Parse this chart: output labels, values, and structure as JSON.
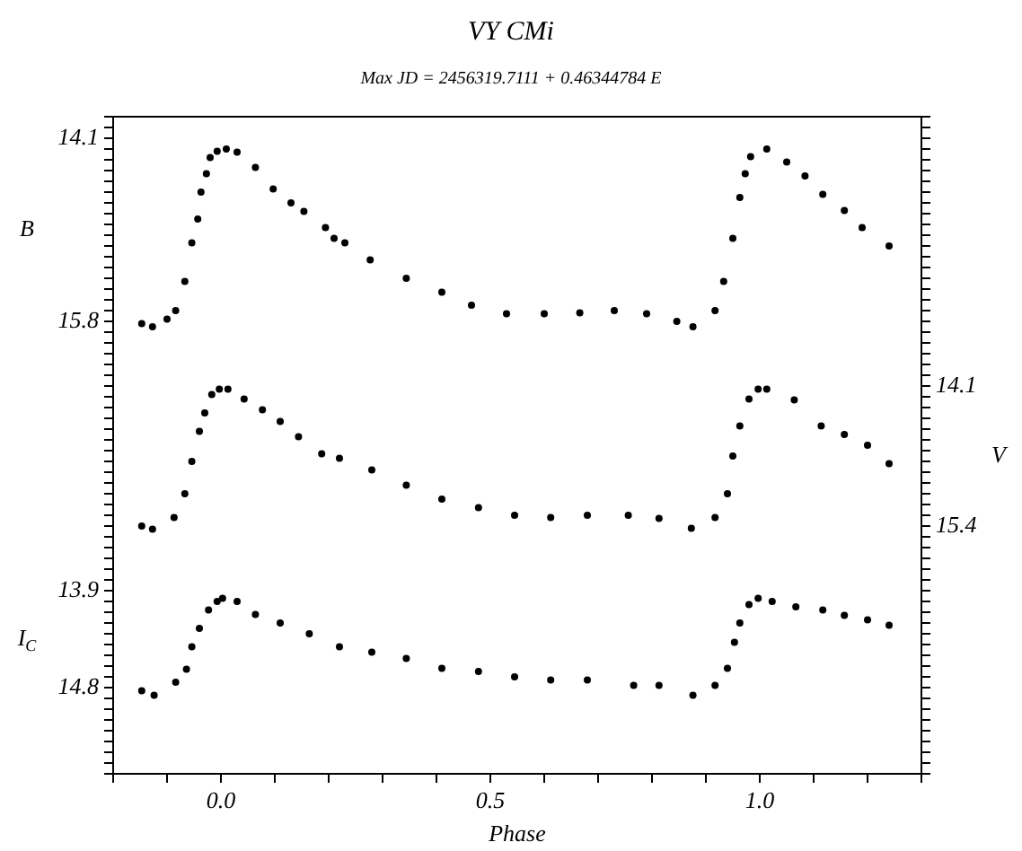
{
  "chart_data": {
    "type": "scatter",
    "title": "VY CMi",
    "subtitle": "Max JD = 2456319.7111 + 0.46344784 E",
    "xlabel": "Phase",
    "ylabel": "B",
    "y2label": "V",
    "y3label": "I$_{C}$",
    "grid": false,
    "legend": false,
    "marker": "circle",
    "xlim": [
      -0.2,
      1.3
    ],
    "xticks": [
      {
        "value": -0.2,
        "label": null
      },
      {
        "value": -0.1,
        "label": null
      },
      {
        "value": 0,
        "label": "0.0"
      },
      {
        "value": 0.1,
        "label": null
      },
      {
        "value": 0.2,
        "label": null
      },
      {
        "value": 0.3,
        "label": null
      },
      {
        "value": 0.4,
        "label": null
      },
      0.5,
      {
        "value": 0.6,
        "label": null
      },
      {
        "value": 0.7,
        "label": null
      },
      {
        "value": 0.8,
        "label": null
      },
      {
        "value": 0.9,
        "label": null
      },
      {
        "value": 1,
        "label": "1.0"
      },
      {
        "value": 1.1,
        "label": null
      },
      {
        "value": 1.2,
        "label": null
      },
      {
        "value": 1.3,
        "label": null
      }
    ],
    "ylim": [
      20.0,
      13.9
    ],
    "yticks": [
      {
        "value": 13.9,
        "label": null
      },
      {
        "value": 14.0,
        "label": null
      },
      14.1,
      {
        "value": 14.2,
        "label": null
      },
      {
        "value": 14.3,
        "label": null
      },
      {
        "value": 14.4,
        "label": null
      },
      {
        "value": 14.5,
        "label": null
      },
      {
        "value": 14.6,
        "label": null
      },
      {
        "value": 14.7,
        "label": null
      },
      {
        "value": 14.8,
        "label": null
      },
      {
        "value": 14.9,
        "label": null
      },
      {
        "value": 15.0,
        "label": null
      },
      {
        "value": 15.1,
        "label": null
      },
      {
        "value": 15.2,
        "label": null
      },
      {
        "value": 15.3,
        "label": null
      },
      {
        "value": 15.4,
        "label": null
      },
      {
        "value": 15.5,
        "label": null
      },
      {
        "value": 15.6,
        "label": null
      },
      {
        "value": 15.7,
        "label": null
      },
      15.8,
      {
        "value": 15.9,
        "label": null
      },
      {
        "value": 16.0,
        "label": null
      },
      {
        "value": 16.1,
        "label": null
      },
      {
        "value": 16.2,
        "label": null
      },
      {
        "value": 16.3,
        "label": null
      },
      {
        "value": 16.4,
        "label": null
      },
      {
        "value": 16.5,
        "label": null
      },
      {
        "value": 16.6,
        "label": null
      },
      {
        "value": 16.7,
        "label": null
      },
      {
        "value": 16.8,
        "label": null
      },
      {
        "value": 16.9,
        "label": null
      },
      {
        "value": 17.0,
        "label": null
      },
      {
        "value": 17.1,
        "label": null
      },
      {
        "value": 17.2,
        "label": null
      },
      {
        "value": 17.3,
        "label": null
      },
      {
        "value": 17.4,
        "label": null
      },
      {
        "value": 17.5,
        "label": null
      },
      {
        "value": 17.6,
        "label": null
      },
      {
        "value": 17.7,
        "label": null
      },
      {
        "value": 17.8,
        "label": null
      },
      {
        "value": 17.9,
        "label": null
      },
      {
        "value": 18.0,
        "label": null
      },
      {
        "value": 18.1,
        "label": null
      },
      {
        "value": 18.2,
        "label": null
      },
      {
        "value": 18.3,
        "label": null
      },
      {
        "value": 18.4,
        "label": null
      },
      {
        "value": 18.5,
        "label": null
      },
      {
        "value": 18.6,
        "label": null
      },
      {
        "value": 18.7,
        "label": null
      },
      {
        "value": 18.8,
        "label": null
      },
      {
        "value": 18.9,
        "label": null
      },
      {
        "value": 19.0,
        "label": null
      },
      {
        "value": 19.1,
        "label": null
      },
      {
        "value": 19.2,
        "label": null
      },
      {
        "value": 19.3,
        "label": null
      },
      {
        "value": 19.4,
        "label": null
      },
      {
        "value": 19.5,
        "label": null
      },
      {
        "value": 19.6,
        "label": null
      },
      {
        "value": 19.7,
        "label": null
      },
      {
        "value": 19.8,
        "label": null
      },
      {
        "value": 19.9,
        "label": null
      },
      {
        "value": 20.0,
        "label": null
      }
    ],
    "y2lim": [
      17.7,
      11.6
    ],
    "y2ticks": [
      {
        "value": 11.6,
        "label": null
      },
      {
        "value": 11.7,
        "label": null
      },
      {
        "value": 11.8,
        "label": null
      },
      {
        "value": 11.9,
        "label": null
      },
      {
        "value": 12.0,
        "label": null
      },
      {
        "value": 12.1,
        "label": null
      },
      {
        "value": 12.2,
        "label": null
      },
      {
        "value": 12.3,
        "label": null
      },
      {
        "value": 12.4,
        "label": null
      },
      {
        "value": 12.5,
        "label": null
      },
      {
        "value": 12.6,
        "label": null
      },
      {
        "value": 12.7,
        "label": null
      },
      {
        "value": 12.8,
        "label": null
      },
      {
        "value": 12.9,
        "label": null
      },
      {
        "value": 13.0,
        "label": null
      },
      {
        "value": 13.1,
        "label": null
      },
      {
        "value": 13.2,
        "label": null
      },
      {
        "value": 13.3,
        "label": null
      },
      {
        "value": 13.4,
        "label": null
      },
      {
        "value": 13.5,
        "label": null
      },
      {
        "value": 13.6,
        "label": null
      },
      {
        "value": 13.7,
        "label": null
      },
      {
        "value": 13.8,
        "label": null
      },
      {
        "value": 13.9,
        "label": null
      },
      {
        "value": 14.0,
        "label": null
      },
      14.1,
      {
        "value": 14.2,
        "label": null
      },
      {
        "value": 14.3,
        "label": null
      },
      {
        "value": 14.4,
        "label": null
      },
      {
        "value": 14.5,
        "label": null
      },
      {
        "value": 14.6,
        "label": null
      },
      {
        "value": 14.7,
        "label": null
      },
      {
        "value": 14.8,
        "label": null
      },
      {
        "value": 14.9,
        "label": null
      },
      {
        "value": 15.0,
        "label": null
      },
      {
        "value": 15.1,
        "label": null
      },
      {
        "value": 15.2,
        "label": null
      },
      {
        "value": 15.3,
        "label": null
      },
      15.4,
      {
        "value": 15.5,
        "label": null
      },
      {
        "value": 15.6,
        "label": null
      },
      {
        "value": 15.7,
        "label": null
      },
      {
        "value": 15.8,
        "label": null
      },
      {
        "value": 15.9,
        "label": null
      },
      {
        "value": 16.0,
        "label": null
      },
      {
        "value": 16.1,
        "label": null
      },
      {
        "value": 16.2,
        "label": null
      },
      {
        "value": 16.3,
        "label": null
      },
      {
        "value": 16.4,
        "label": null
      },
      {
        "value": 16.5,
        "label": null
      },
      {
        "value": 16.6,
        "label": null
      },
      {
        "value": 16.7,
        "label": null
      },
      {
        "value": 16.8,
        "label": null
      },
      {
        "value": 16.9,
        "label": null
      },
      {
        "value": 17.0,
        "label": null
      },
      {
        "value": 17.1,
        "label": null
      },
      {
        "value": 17.2,
        "label": null
      },
      {
        "value": 17.3,
        "label": null
      },
      {
        "value": 17.4,
        "label": null
      },
      {
        "value": 17.5,
        "label": null
      },
      {
        "value": 17.6,
        "label": null
      },
      {
        "value": 17.7,
        "label": null
      }
    ],
    "y3lim": [
      15.6,
      9.5
    ],
    "y3ticks": [
      13.9,
      14.8
    ],
    "series": [
      {
        "color": "#000000",
        "axis": "y",
        "x": [
          -0.147,
          -0.127,
          -0.1,
          -0.084,
          -0.067,
          -0.054,
          -0.043,
          -0.037,
          -0.027,
          -0.02,
          -0.007,
          0.01,
          0.03,
          0.064,
          0.097,
          0.13,
          0.154,
          0.194,
          0.21,
          0.23,
          0.277,
          0.344,
          0.41,
          0.465,
          0.53,
          0.6,
          0.666,
          0.73,
          0.79,
          0.846,
          0.876,
          0.917,
          0.933,
          0.95,
          0.963,
          0.973,
          0.983,
          1.013,
          1.05,
          1.084,
          1.117,
          1.157,
          1.19,
          1.24
        ],
        "values": [
          15.82,
          15.85,
          15.78,
          15.7,
          15.43,
          15.07,
          14.85,
          14.6,
          14.43,
          14.28,
          14.22,
          14.2,
          14.23,
          14.37,
          14.57,
          14.7,
          14.78,
          14.93,
          15.03,
          15.07,
          15.23,
          15.4,
          15.53,
          15.65,
          15.73,
          15.73,
          15.72,
          15.7,
          15.73,
          15.8,
          15.85,
          15.7,
          15.43,
          15.03,
          14.65,
          14.43,
          14.27,
          14.2,
          14.32,
          14.45,
          14.62,
          14.77,
          14.93,
          15.1
        ]
      },
      {
        "color": "#000000",
        "axis": "y2",
        "x": [
          -0.147,
          -0.127,
          -0.087,
          -0.067,
          -0.054,
          -0.04,
          -0.03,
          -0.017,
          -0.003,
          0.013,
          0.043,
          0.077,
          0.11,
          0.144,
          0.187,
          0.22,
          0.28,
          0.344,
          0.41,
          0.478,
          0.545,
          0.612,
          0.68,
          0.756,
          0.813,
          0.873,
          0.917,
          0.94,
          0.95,
          0.963,
          0.98,
          0.997,
          1.013,
          1.064,
          1.114,
          1.157,
          1.2,
          1.24
        ],
        "values": [
          15.4,
          15.43,
          15.32,
          15.1,
          14.8,
          14.52,
          14.35,
          14.18,
          14.13,
          14.13,
          14.22,
          14.32,
          14.43,
          14.57,
          14.73,
          14.77,
          14.88,
          15.02,
          15.15,
          15.23,
          15.3,
          15.32,
          15.3,
          15.3,
          15.33,
          15.42,
          15.32,
          15.1,
          14.75,
          14.47,
          14.22,
          14.13,
          14.13,
          14.23,
          14.47,
          14.55,
          14.65,
          14.82
        ]
      },
      {
        "color": "#000000",
        "axis": "y3",
        "x": [
          -0.147,
          -0.124,
          -0.084,
          -0.064,
          -0.054,
          -0.04,
          -0.023,
          -0.007,
          0.003,
          0.03,
          0.064,
          0.11,
          0.164,
          0.22,
          0.28,
          0.344,
          0.41,
          0.478,
          0.545,
          0.612,
          0.68,
          0.766,
          0.813,
          0.876,
          0.917,
          0.94,
          0.953,
          0.963,
          0.98,
          0.997,
          1.023,
          1.067,
          1.117,
          1.157,
          1.2,
          1.24
        ],
        "values": [
          14.83,
          14.87,
          14.75,
          14.63,
          14.42,
          14.25,
          14.08,
          14.0,
          13.97,
          14.0,
          14.12,
          14.2,
          14.3,
          14.42,
          14.47,
          14.53,
          14.62,
          14.65,
          14.7,
          14.73,
          14.73,
          14.78,
          14.78,
          14.87,
          14.78,
          14.62,
          14.38,
          14.2,
          14.03,
          13.97,
          14.0,
          14.05,
          14.08,
          14.13,
          14.17,
          14.22
        ]
      }
    ]
  }
}
